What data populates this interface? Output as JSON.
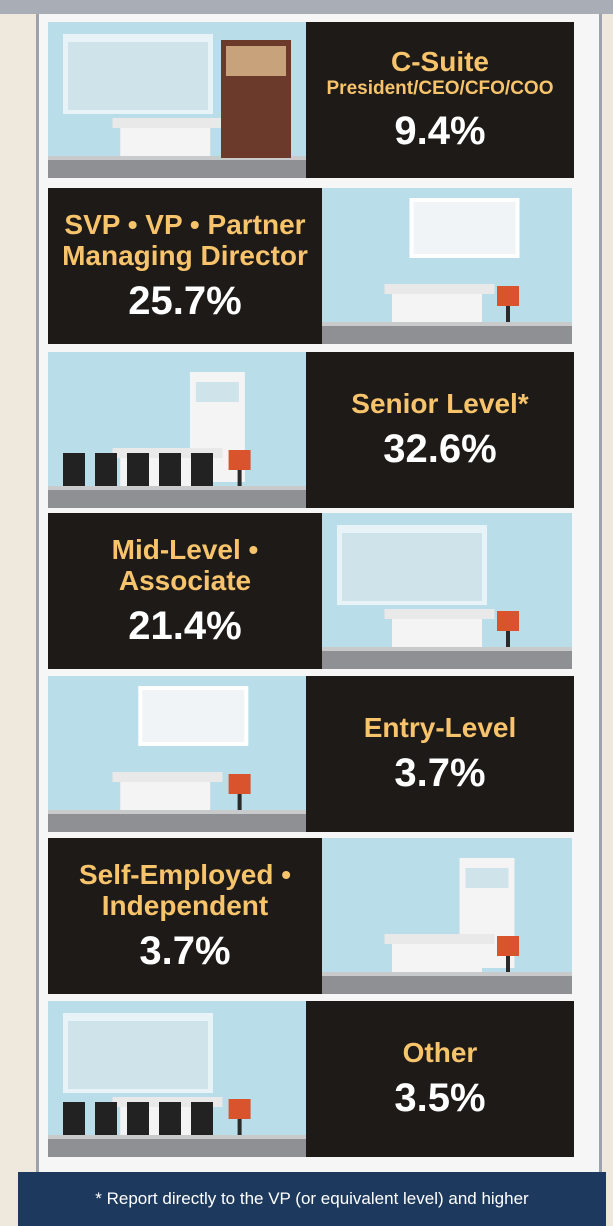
{
  "rows": [
    {
      "lines": [
        "C-Suite"
      ],
      "subtitle": "President/CEO/CFO/COO",
      "value": "9.4%"
    },
    {
      "lines": [
        "SVP • VP • Partner",
        "Managing Director"
      ],
      "value": "25.7%"
    },
    {
      "lines": [
        "Senior Level*"
      ],
      "value": "32.6%"
    },
    {
      "lines": [
        "Mid-Level •",
        "Associate"
      ],
      "value": "21.4%"
    },
    {
      "lines": [
        "Entry-Level"
      ],
      "value": "3.7%"
    },
    {
      "lines": [
        "Self-Employed •",
        "Independent"
      ],
      "value": "3.7%"
    },
    {
      "lines": [
        "Other"
      ],
      "value": "3.5%"
    }
  ],
  "footnote": "* Report directly to the VP (or equivalent level) and higher"
}
